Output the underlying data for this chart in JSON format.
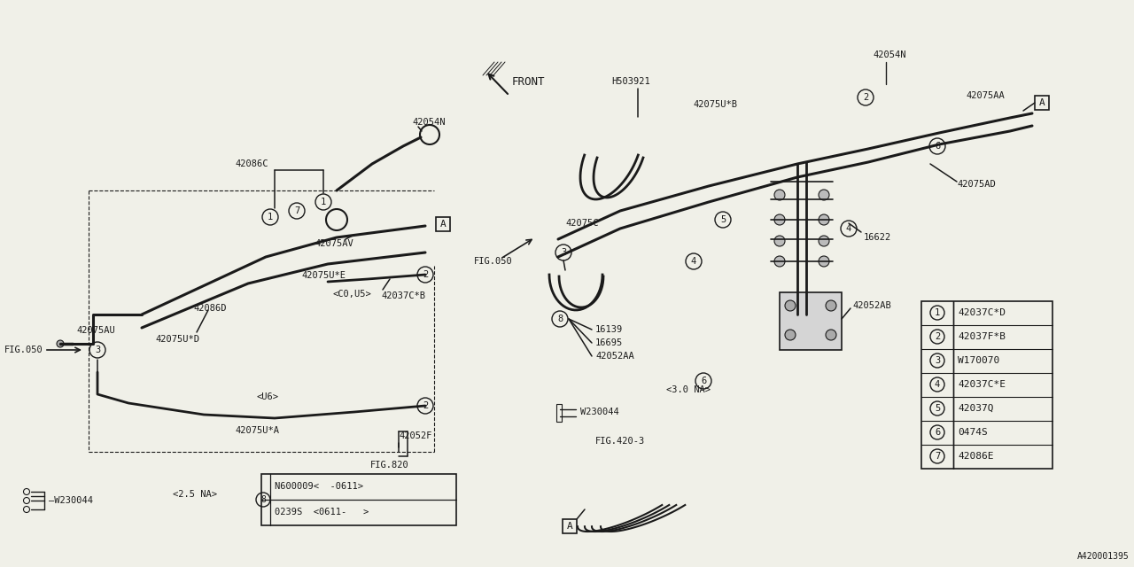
{
  "bg_color": "#f0f0e8",
  "line_color": "#1a1a1a",
  "part_number": "A420001395",
  "legend_items": [
    {
      "num": "1",
      "part": "42037C*D"
    },
    {
      "num": "2",
      "part": "42037F*B"
    },
    {
      "num": "3",
      "part": "W170070"
    },
    {
      "num": "4",
      "part": "42037C*E"
    },
    {
      "num": "5",
      "part": "42037Q"
    },
    {
      "num": "6",
      "part": "0474S"
    },
    {
      "num": "7",
      "part": "42086E"
    }
  ],
  "note_line1": "N600009<  -0611>",
  "note_line2": "0239S  <0611-   >",
  "front_label": "FRONT",
  "fig050_label": "FIG.050",
  "w230044_label": "W230044",
  "fig4203_label": "FIG.420-3",
  "label_25na": "<2.5 NA>",
  "label_30na": "<3.0 NA>",
  "label_c0u5": "<C0,U5>",
  "label_u6": "<U6>",
  "section_a": "A",
  "fig820": "FIG.820"
}
